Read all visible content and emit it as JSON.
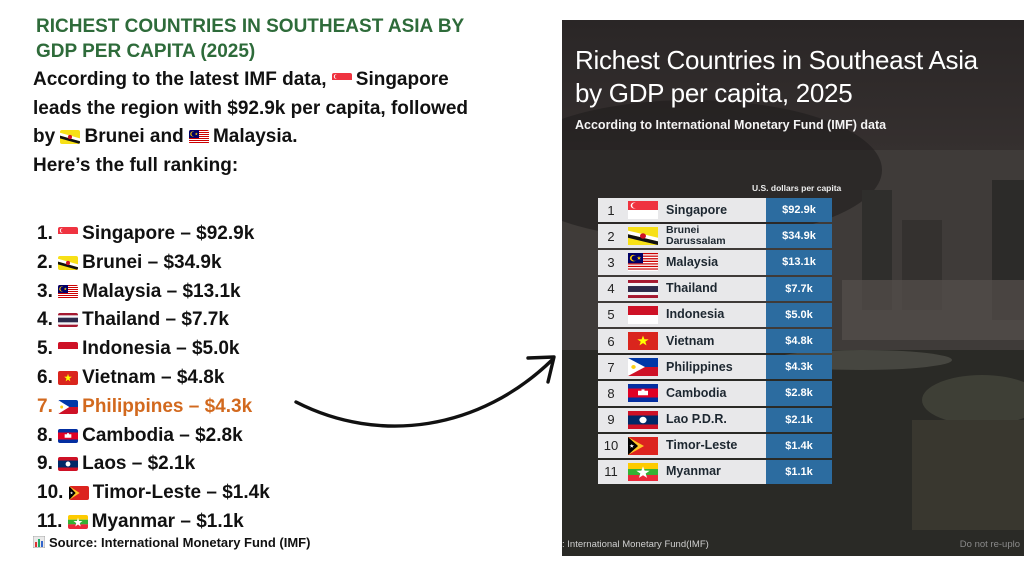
{
  "heading_line1": "RICHEST COUNTRIES IN SOUTHEAST ASIA BY",
  "heading_line2": "GDP PER CAPITA (2025)",
  "intro": {
    "part1": "According to the latest IMF data,",
    "part2": "Singapore",
    "part3": "leads the region with $92.9k per capita, followed",
    "part4": "by",
    "part5": "Brunei and",
    "part6": "Malaysia.",
    "part7": "Here’s the full ranking:"
  },
  "ranking_text": [
    "1.",
    "2.",
    "3.",
    "4.",
    "5.",
    "6.",
    "7.",
    "8.",
    "9.",
    "10.",
    "11."
  ],
  "ranking_labels": [
    "Singapore – $92.9k",
    "Brunei – $34.9k",
    "Malaysia – $13.1k",
    "Thailand – $7.7k",
    "Indonesia – $5.0k",
    "Vietnam – $4.8k",
    "Philippines – $4.3k",
    "Cambodia – $2.8k",
    "Laos – $2.1k",
    "Timor-Leste – $1.4k",
    "Myanmar – $1.1k"
  ],
  "highlight_color": "#d2691e",
  "source": "Source: International Monetary Fund (IMF)",
  "photo": {
    "title_line1": "Richest Countries in Southeast Asia",
    "title_line2": "by GDP per capita, 2025",
    "subtitle": "According to International Monetary Fund (IMF) data",
    "credit": ": International Monetary Fund(IMF)",
    "watermark": "Do not re-uplo"
  },
  "chart_data": {
    "type": "table",
    "title": "Richest Countries in Southeast Asia by GDP per capita, 2025",
    "subtitle": "According to International Monetary Fund (IMF) data",
    "value_header": "U.S. dollars per capita",
    "rows": [
      {
        "rank": "1",
        "country": "Singapore",
        "value_label": "$92.9k",
        "value": 92.9
      },
      {
        "rank": "2",
        "country": "Brunei Darussalam",
        "value_label": "$34.9k",
        "value": 34.9
      },
      {
        "rank": "3",
        "country": "Malaysia",
        "value_label": "$13.1k",
        "value": 13.1
      },
      {
        "rank": "4",
        "country": "Thailand",
        "value_label": "$7.7k",
        "value": 7.7
      },
      {
        "rank": "5",
        "country": "Indonesia",
        "value_label": "$5.0k",
        "value": 5.0
      },
      {
        "rank": "6",
        "country": "Vietnam",
        "value_label": "$4.8k",
        "value": 4.8
      },
      {
        "rank": "7",
        "country": "Philippines",
        "value_label": "$4.3k",
        "value": 4.3
      },
      {
        "rank": "8",
        "country": "Cambodia",
        "value_label": "$2.8k",
        "value": 2.8
      },
      {
        "rank": "9",
        "country": "Lao P.D.R.",
        "value_label": "$2.1k",
        "value": 2.1
      },
      {
        "rank": "10",
        "country": "Timor-Leste",
        "value_label": "$1.4k",
        "value": 1.4
      },
      {
        "rank": "11",
        "country": "Myanmar",
        "value_label": "$1.1k",
        "value": 1.1
      }
    ],
    "value_cell_color": "#2c6ca0"
  },
  "flags": [
    "singapore-flag-icon",
    "brunei-flag-icon",
    "malaysia-flag-icon",
    "thailand-flag-icon",
    "indonesia-flag-icon",
    "vietnam-flag-icon",
    "philippines-flag-icon",
    "cambodia-flag-icon",
    "laos-flag-icon",
    "timor-leste-flag-icon",
    "myanmar-flag-icon"
  ]
}
